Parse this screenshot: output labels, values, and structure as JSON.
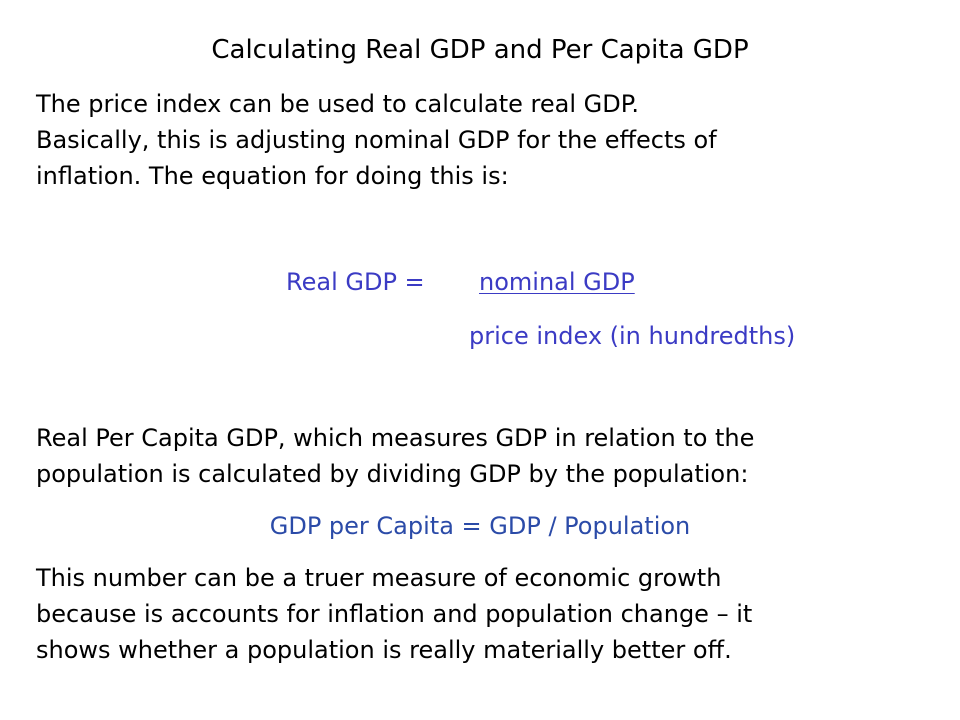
{
  "title": "Calculating Real GDP and Per Capita GDP",
  "intro": {
    "lines": [
      "The price index can be used to calculate real GDP.",
      "Basically, this is adjusting nominal GDP for the effects of",
      "inflation.  The equation for doing this is:"
    ]
  },
  "equation_real_gdp": {
    "label": "Real GDP =",
    "numerator": "nominal GDP",
    "denominator": "price index (in hundredths)",
    "color": "#3b3bc4"
  },
  "per_capita": {
    "lines": [
      "Real Per Capita GDP, which measures GDP in relation to the",
      "population is calculated by dividing GDP by the population:"
    ]
  },
  "equation_per_capita": {
    "text": "GDP per Capita = GDP / Population",
    "color": "#2b4ba8"
  },
  "conclusion": {
    "lines": [
      "This number can be a truer measure of economic growth",
      "because is accounts for inflation and population change – it",
      "shows whether a population is really materially better off."
    ]
  }
}
